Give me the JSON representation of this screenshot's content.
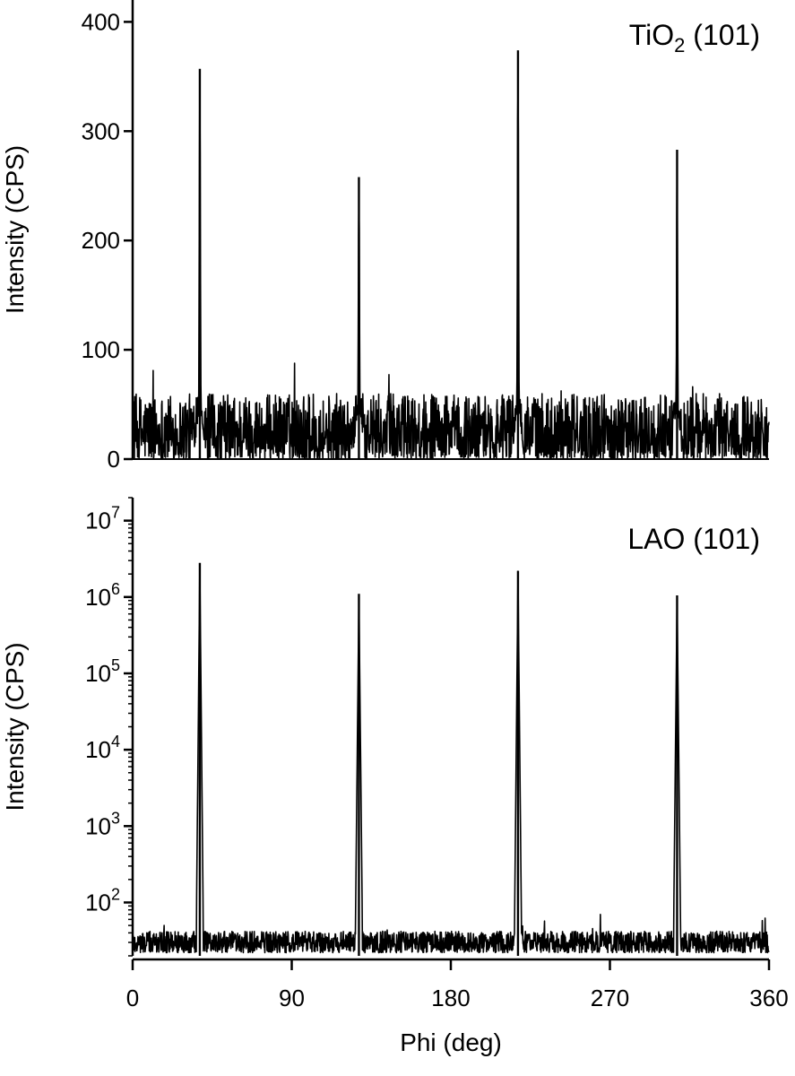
{
  "chart_data": [
    {
      "type": "line",
      "panel_label": "TiO",
      "panel_label_sub": "2",
      "panel_label_suffix": " (101)",
      "ylabel": "Intensity (CPS)",
      "xlim": [
        0,
        360
      ],
      "ylim": [
        0,
        420
      ],
      "yscale": "linear",
      "yticks": [
        0,
        100,
        200,
        300,
        400
      ],
      "ytick_labels": [
        "0",
        "100",
        "200",
        "300",
        "400"
      ],
      "baseline": {
        "min": 0,
        "max": 60,
        "occasional_max": 92
      },
      "peaks": [
        {
          "x": 38,
          "y": 357,
          "base_width": 3.5
        },
        {
          "x": 128,
          "y": 258,
          "base_width": 3.5
        },
        {
          "x": 218,
          "y": 374,
          "base_width": 3.5
        },
        {
          "x": 308,
          "y": 283,
          "base_width": 3.0
        }
      ],
      "grid": false,
      "series": [
        {
          "color": "#000000"
        }
      ]
    },
    {
      "type": "line",
      "panel_label": "LAO (101)",
      "ylabel": "Intensity (CPS)",
      "xlabel": "Phi (deg)",
      "xlim": [
        0,
        360
      ],
      "xticks": [
        0,
        90,
        180,
        270,
        360
      ],
      "xtick_labels": [
        "0",
        "90",
        "180",
        "270",
        "360"
      ],
      "ylim": [
        20,
        20000000
      ],
      "yscale": "log",
      "yticks": [
        100,
        1000,
        10000,
        100000,
        1000000,
        10000000
      ],
      "ytick_labels": [
        {
          "base": "10",
          "exp": "2"
        },
        {
          "base": "10",
          "exp": "3"
        },
        {
          "base": "10",
          "exp": "4"
        },
        {
          "base": "10",
          "exp": "5"
        },
        {
          "base": "10",
          "exp": "6"
        },
        {
          "base": "10",
          "exp": "7"
        }
      ],
      "baseline": {
        "min": 22,
        "max": 42,
        "occasional_max": 70
      },
      "peaks": [
        {
          "x": 38,
          "y": 2800000,
          "base_width": 2.0
        },
        {
          "x": 128,
          "y": 1100000,
          "base_width": 2.0
        },
        {
          "x": 218,
          "y": 2200000,
          "base_width": 2.0
        },
        {
          "x": 308,
          "y": 1050000,
          "base_width": 2.0
        }
      ],
      "grid": false,
      "series": [
        {
          "color": "#000000"
        }
      ]
    }
  ]
}
